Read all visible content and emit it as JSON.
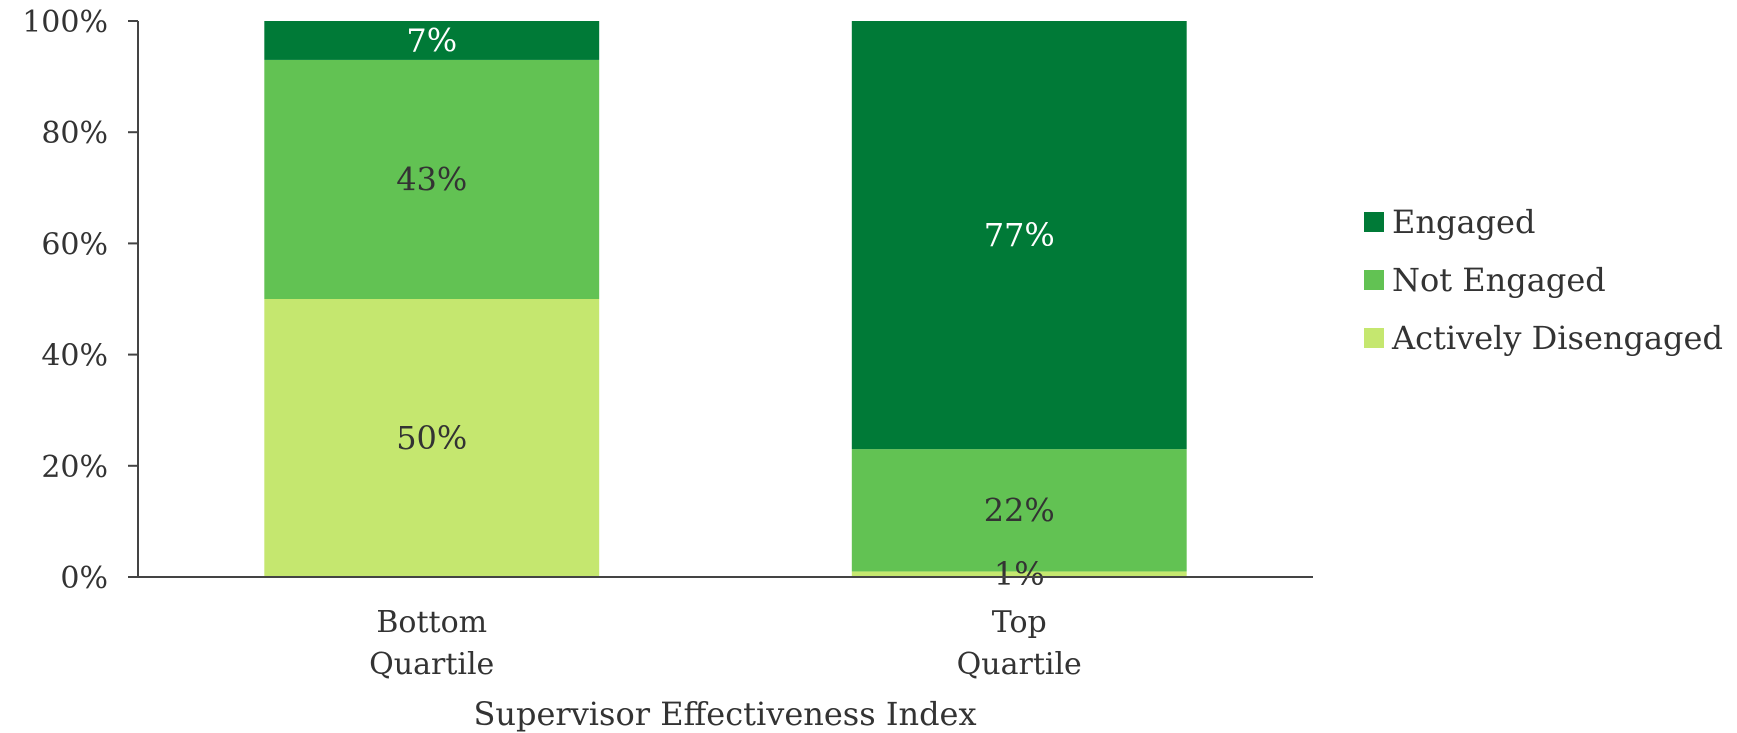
{
  "chart_data": {
    "type": "bar",
    "stacked": true,
    "categories": [
      "Bottom\nQuartile",
      "Top\nQuartile"
    ],
    "series": [
      {
        "name": "Actively Disengaged",
        "color": "#c5e76f",
        "label_color": "#333333",
        "values": [
          50,
          1
        ]
      },
      {
        "name": "Not Engaged",
        "color": "#62c253",
        "label_color": "#333333",
        "values": [
          43,
          22
        ]
      },
      {
        "name": "Engaged",
        "color": "#007a37",
        "label_color": "#ffffff",
        "values": [
          7,
          77
        ]
      }
    ],
    "legend_order": [
      "Engaged",
      "Not Engaged",
      "Actively Disengaged"
    ],
    "xlabel": "Supervisor Effectiveness Index",
    "ylabel": "",
    "ylim": [
      0,
      100
    ],
    "yticks": [
      0,
      20,
      40,
      60,
      80,
      100
    ],
    "tick_suffix": "%",
    "value_suffix": "%",
    "grid": false,
    "legend_position": "right"
  }
}
